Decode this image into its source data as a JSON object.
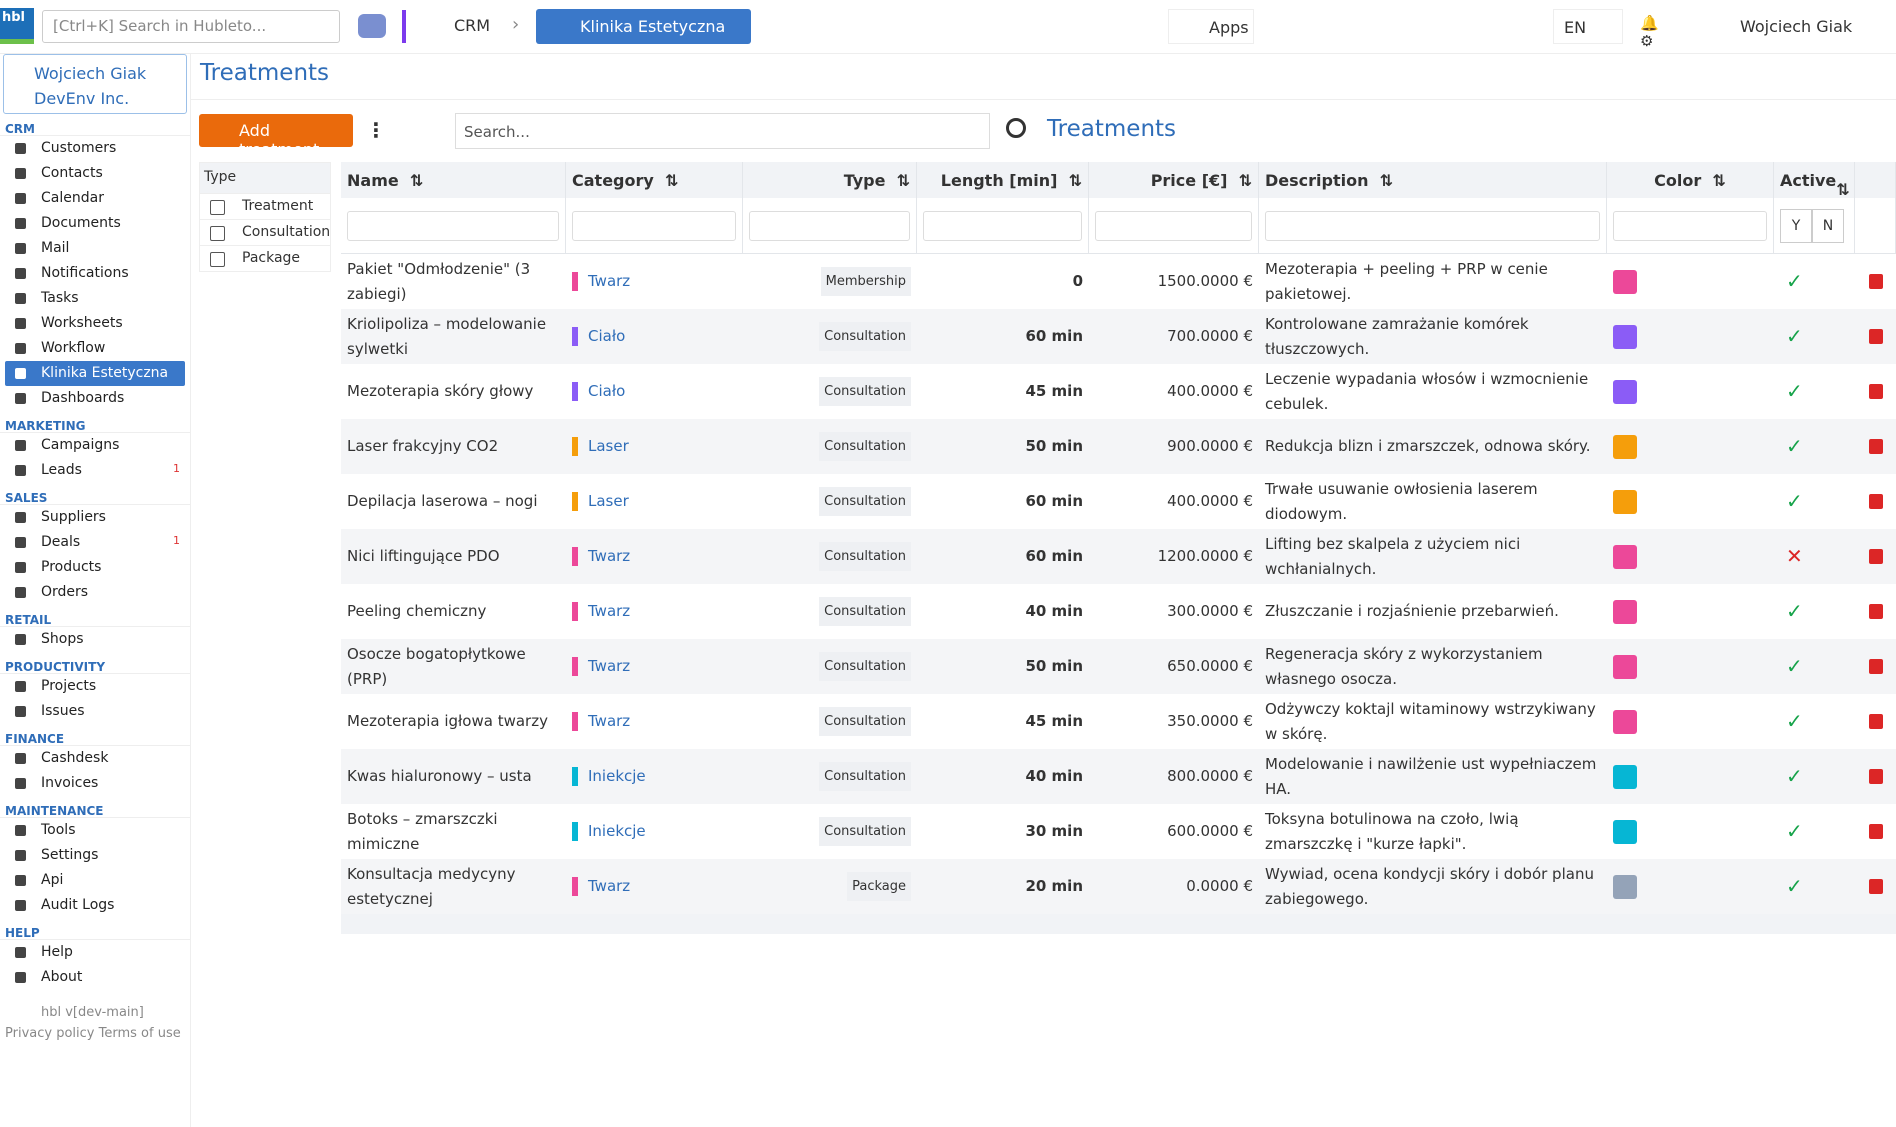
{
  "topbar": {
    "logo": "hbl",
    "search_placeholder": "[Ctrl+K] Search in Hubleto...",
    "crumb": "CRM",
    "app": "Klinika Estetyczna",
    "apps": "Apps",
    "lang": "EN",
    "user": "Wojciech Giak"
  },
  "sidebar": {
    "user": "Wojciech Giak",
    "company": "DevEnv Inc.",
    "groups": [
      {
        "title": "CRM",
        "items": [
          {
            "label": "Customers"
          },
          {
            "label": "Contacts"
          },
          {
            "label": "Calendar"
          },
          {
            "label": "Documents"
          },
          {
            "label": "Mail"
          },
          {
            "label": "Notifications"
          },
          {
            "label": "Tasks"
          },
          {
            "label": "Worksheets"
          },
          {
            "label": "Workflow"
          },
          {
            "label": "Klinika Estetyczna",
            "active": true
          },
          {
            "label": "Dashboards"
          }
        ]
      },
      {
        "title": "MARKETING",
        "items": [
          {
            "label": "Campaigns"
          },
          {
            "label": "Leads",
            "badge": "1"
          }
        ]
      },
      {
        "title": "SALES",
        "items": [
          {
            "label": "Suppliers"
          },
          {
            "label": "Deals",
            "badge": "1"
          },
          {
            "label": "Products"
          },
          {
            "label": "Orders"
          }
        ]
      },
      {
        "title": "RETAIL",
        "items": [
          {
            "label": "Shops"
          }
        ]
      },
      {
        "title": "PRODUCTIVITY",
        "items": [
          {
            "label": "Projects"
          },
          {
            "label": "Issues"
          }
        ]
      },
      {
        "title": "FINANCE",
        "items": [
          {
            "label": "Cashdesk"
          },
          {
            "label": "Invoices"
          }
        ]
      },
      {
        "title": "MAINTENANCE",
        "items": [
          {
            "label": "Tools"
          },
          {
            "label": "Settings"
          },
          {
            "label": "Api"
          },
          {
            "label": "Audit Logs"
          }
        ]
      },
      {
        "title": "HELP",
        "items": [
          {
            "label": "Help"
          },
          {
            "label": "About"
          }
        ]
      }
    ],
    "version": "hbl v[dev-main]",
    "privacy": "Privacy policy",
    "terms": "Terms of use"
  },
  "page": {
    "title": "Treatments",
    "add_button": "Add treatment",
    "search_placeholder": "Search...",
    "table_title": "Treatments"
  },
  "filter": {
    "title": "Type",
    "options": [
      "Treatment",
      "Consultation",
      "Package"
    ]
  },
  "table": {
    "columns": [
      "Name",
      "Category",
      "Type",
      "Length [min]",
      "Price [€]",
      "Description",
      "Color",
      "Active"
    ],
    "active_filter": [
      "Y",
      "N"
    ],
    "rows": [
      {
        "name": "Pakiet \"Odmłodzenie\" (3 zabiegi)",
        "category": "Twarz",
        "category_color": "#ec4899",
        "type": "Membership",
        "length": "0",
        "price": "1500.0000 €",
        "description": "Mezoterapia + peeling + PRP w cenie pakietowej.",
        "color": "#ec4899",
        "active": true
      },
      {
        "name": "Kriolipoliza – modelowanie sylwetki",
        "category": "Ciało",
        "category_color": "#8b5cf6",
        "type": "Consultation",
        "length": "60 min",
        "price": "700.0000 €",
        "description": "Kontrolowane zamrażanie komórek tłuszczowych.",
        "color": "#8b5cf6",
        "active": true
      },
      {
        "name": "Mezoterapia skóry głowy",
        "category": "Ciało",
        "category_color": "#8b5cf6",
        "type": "Consultation",
        "length": "45 min",
        "price": "400.0000 €",
        "description": "Leczenie wypadania włosów i wzmocnienie cebulek.",
        "color": "#8b5cf6",
        "active": true
      },
      {
        "name": "Laser frakcyjny CO2",
        "category": "Laser",
        "category_color": "#f59e0b",
        "type": "Consultation",
        "length": "50 min",
        "price": "900.0000 €",
        "description": "Redukcja blizn i zmarszczek, odnowa skóry.",
        "color": "#f59e0b",
        "active": true
      },
      {
        "name": "Depilacja laserowa – nogi",
        "category": "Laser",
        "category_color": "#f59e0b",
        "type": "Consultation",
        "length": "60 min",
        "price": "400.0000 €",
        "description": "Trwałe usuwanie owłosienia laserem diodowym.",
        "color": "#f59e0b",
        "active": true
      },
      {
        "name": "Nici liftingujące PDO",
        "category": "Twarz",
        "category_color": "#ec4899",
        "type": "Consultation",
        "length": "60 min",
        "price": "1200.0000 €",
        "description": "Lifting bez skalpela z użyciem nici wchłanialnych.",
        "color": "#ec4899",
        "active": false
      },
      {
        "name": "Peeling chemiczny",
        "category": "Twarz",
        "category_color": "#ec4899",
        "type": "Consultation",
        "length": "40 min",
        "price": "300.0000 €",
        "description": "Złuszczanie i rozjaśnienie przebarwień.",
        "color": "#ec4899",
        "active": true
      },
      {
        "name": "Osocze bogatopłytkowe (PRP)",
        "category": "Twarz",
        "category_color": "#ec4899",
        "type": "Consultation",
        "length": "50 min",
        "price": "650.0000 €",
        "description": "Regeneracja skóry z wykorzystaniem własnego osocza.",
        "color": "#ec4899",
        "active": true
      },
      {
        "name": "Mezoterapia igłowa twarzy",
        "category": "Twarz",
        "category_color": "#ec4899",
        "type": "Consultation",
        "length": "45 min",
        "price": "350.0000 €",
        "description": "Odżywczy koktajl witaminowy wstrzykiwany w skórę.",
        "color": "#ec4899",
        "active": true
      },
      {
        "name": "Kwas hialuronowy – usta",
        "category": "Iniekcje",
        "category_color": "#06b6d4",
        "type": "Consultation",
        "length": "40 min",
        "price": "800.0000 €",
        "description": "Modelowanie i nawilżenie ust wypełniaczem HA.",
        "color": "#06b6d4",
        "active": true
      },
      {
        "name": "Botoks – zmarszczki mimiczne",
        "category": "Iniekcje",
        "category_color": "#06b6d4",
        "type": "Consultation",
        "length": "30 min",
        "price": "600.0000 €",
        "description": "Toksyna botulinowa na czoło, lwią zmarszczkę i \"kurze łapki\".",
        "color": "#06b6d4",
        "active": true
      },
      {
        "name": "Konsultacja medycyny estetycznej",
        "category": "Twarz",
        "category_color": "#ec4899",
        "type": "Package",
        "length": "20 min",
        "price": "0.0000 €",
        "description": "Wywiad, ocena kondycji skóry i dobór planu zabiegowego.",
        "color": "#94a3b8",
        "active": true
      }
    ]
  }
}
